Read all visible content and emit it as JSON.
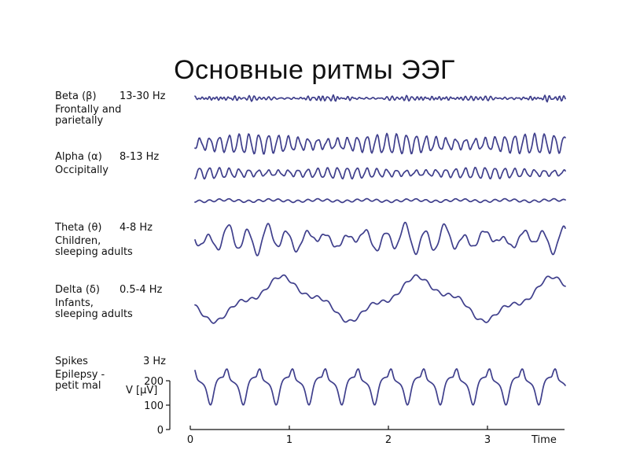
{
  "slide": {
    "title": "Основные ритмы ЭЭГ"
  },
  "colors": {
    "trace": "#3f3f8c",
    "axis": "#111111",
    "text": "#111111",
    "background": "#ffffff"
  },
  "chart_data": {
    "type": "line",
    "title": "Основные ритмы ЭЭГ",
    "xlabel": "Time",
    "ylabel": "V [µV]",
    "xlim": [
      0,
      3.8
    ],
    "x_ticks": [
      "0",
      "1",
      "2",
      "3"
    ],
    "y_ticks": [
      "0",
      "100",
      "200"
    ],
    "grid": false,
    "legend": "none",
    "rhythms": [
      {
        "id": "beta",
        "label": "Beta (β)",
        "freq": "13-30 Hz",
        "freq_hz": 20,
        "note_lines": [
          "Frontally and",
          "parietally"
        ]
      },
      {
        "id": "alpha",
        "label": "Alpha (α)",
        "freq": "8-13 Hz",
        "freq_hz": 10,
        "note_lines": [
          "Occipitally"
        ]
      },
      {
        "id": "theta",
        "label": "Theta (θ)",
        "freq": "4-8 Hz",
        "freq_hz": 5,
        "note_lines": [
          "Children,",
          "sleeping adults"
        ]
      },
      {
        "id": "delta",
        "label": "Delta (δ)",
        "freq": "0.5-4 Hz",
        "freq_hz": 1,
        "note_lines": [
          "Infants,",
          "sleeping adults"
        ]
      },
      {
        "id": "spikes",
        "label": "Spikes",
        "freq": "3 Hz",
        "freq_hz": 3,
        "note_lines": [
          "Epilepsy -",
          "petit mal"
        ]
      }
    ],
    "series": [
      {
        "rhythm": "beta",
        "wave": "beta",
        "amplitude_uV": 15
      },
      {
        "rhythm": "alpha",
        "wave": "alpha",
        "amplitude_uV": 45
      },
      {
        "rhythm": "alpha",
        "wave": "alpha",
        "amplitude_uV": 25
      },
      {
        "rhythm": "alpha",
        "wave": "low",
        "amplitude_uV": 7
      },
      {
        "rhythm": "theta",
        "wave": "theta",
        "amplitude_uV": 70
      },
      {
        "rhythm": "delta",
        "wave": "delta",
        "amplitude_uV": 120
      },
      {
        "rhythm": "spikes",
        "wave": "spike-wave",
        "amplitude_uV": 200
      }
    ]
  }
}
